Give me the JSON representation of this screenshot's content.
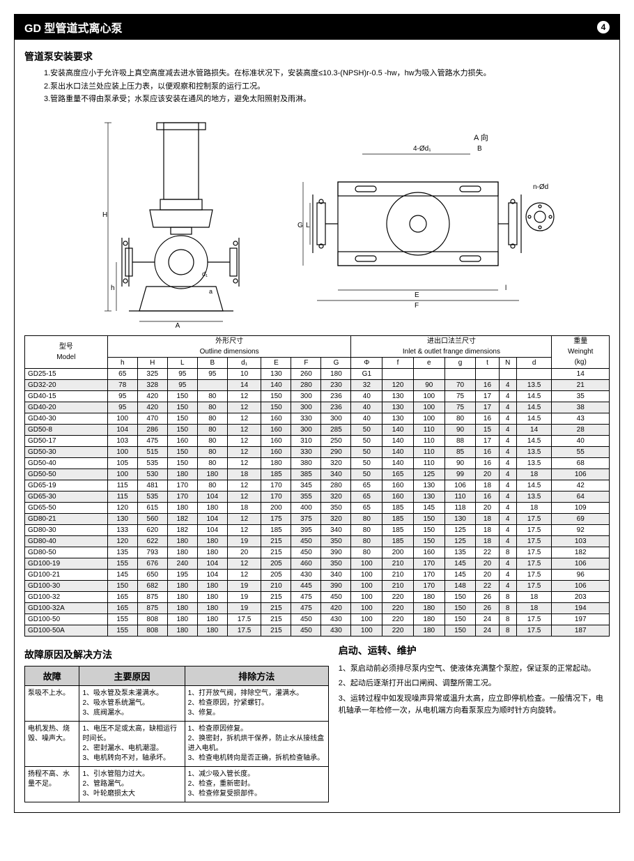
{
  "header": {
    "title": "GD 型管道式离心泵",
    "page": "4"
  },
  "installation": {
    "title": "管道泵安装要求",
    "lines": [
      "1.安装高度应小于允许吸上真空高度减去进水管路损失。在标准状况下，安装高度≤10.3-(NPSH)r-0.5 -hw，hw为吸入管路水力损失。",
      "2.泵出水口法兰处应装上压力表，以便观察和控制泵的运行工况。",
      "3.管路重量不得由泵承受；水泵应该安装在通风的地方，避免太阳照射及雨淋。"
    ]
  },
  "diagram_labels": {
    "center_bottom": "A",
    "ann1": "4-Ød₁",
    "ann2": "A 向",
    "ann3": "B",
    "ann4": "n-Ød",
    "H": "H",
    "h": "h",
    "L": "L",
    "B": "B",
    "d1": "d₁",
    "a": "a",
    "E": "E",
    "F": "F",
    "G": "G",
    "l": "l"
  },
  "spec_table": {
    "group_headers": [
      {
        "label": "型号\nModel",
        "colspan": 1,
        "rowspan": 2
      },
      {
        "label": "外形尺寸\nOutline dimensions",
        "colspan": 8
      },
      {
        "label": "进出口法兰尺寸\nInlet & outlet frange dimensions",
        "colspan": 7
      },
      {
        "label": "重量\nWeinght\n(kg)",
        "colspan": 1,
        "rowspan": 2
      }
    ],
    "sub_headers": [
      "h",
      "H",
      "L",
      "B",
      "d₁",
      "E",
      "F",
      "G",
      "Φ",
      "f",
      "e",
      "g",
      "t",
      "N",
      "d"
    ],
    "rows": [
      [
        "GD25-15",
        "65",
        "325",
        "95",
        "95",
        "10",
        "130",
        "260",
        "180",
        "G1",
        "",
        "",
        "",
        "",
        "",
        "",
        "14"
      ],
      [
        "GD32-20",
        "78",
        "328",
        "95",
        "",
        "14",
        "140",
        "280",
        "230",
        "32",
        "120",
        "90",
        "70",
        "16",
        "4",
        "13.5",
        "21"
      ],
      [
        "GD40-15",
        "95",
        "420",
        "150",
        "80",
        "12",
        "150",
        "300",
        "236",
        "40",
        "130",
        "100",
        "75",
        "17",
        "4",
        "14.5",
        "35"
      ],
      [
        "GD40-20",
        "95",
        "420",
        "150",
        "80",
        "12",
        "150",
        "300",
        "236",
        "40",
        "130",
        "100",
        "75",
        "17",
        "4",
        "14.5",
        "38"
      ],
      [
        "GD40-30",
        "100",
        "470",
        "150",
        "80",
        "12",
        "160",
        "330",
        "300",
        "40",
        "130",
        "100",
        "80",
        "16",
        "4",
        "14.5",
        "43"
      ],
      [
        "GD50-8",
        "104",
        "286",
        "150",
        "80",
        "12",
        "160",
        "300",
        "285",
        "50",
        "140",
        "110",
        "90",
        "15",
        "4",
        "14",
        "28"
      ],
      [
        "GD50-17",
        "103",
        "475",
        "160",
        "80",
        "12",
        "160",
        "310",
        "250",
        "50",
        "140",
        "110",
        "88",
        "17",
        "4",
        "14.5",
        "40"
      ],
      [
        "GD50-30",
        "100",
        "515",
        "150",
        "80",
        "12",
        "160",
        "330",
        "290",
        "50",
        "140",
        "110",
        "85",
        "16",
        "4",
        "13.5",
        "55"
      ],
      [
        "GD50-40",
        "105",
        "535",
        "150",
        "80",
        "12",
        "180",
        "380",
        "320",
        "50",
        "140",
        "110",
        "90",
        "16",
        "4",
        "13.5",
        "68"
      ],
      [
        "GD50-50",
        "100",
        "530",
        "180",
        "180",
        "18",
        "185",
        "385",
        "340",
        "50",
        "165",
        "125",
        "99",
        "20",
        "4",
        "18",
        "106"
      ],
      [
        "GD65-19",
        "115",
        "481",
        "170",
        "80",
        "12",
        "170",
        "345",
        "280",
        "65",
        "160",
        "130",
        "106",
        "18",
        "4",
        "14.5",
        "42"
      ],
      [
        "GD65-30",
        "115",
        "535",
        "170",
        "104",
        "12",
        "170",
        "355",
        "320",
        "65",
        "160",
        "130",
        "110",
        "16",
        "4",
        "13.5",
        "64"
      ],
      [
        "GD65-50",
        "120",
        "615",
        "180",
        "180",
        "18",
        "200",
        "400",
        "350",
        "65",
        "185",
        "145",
        "118",
        "20",
        "4",
        "18",
        "109"
      ],
      [
        "GD80-21",
        "130",
        "560",
        "182",
        "104",
        "12",
        "175",
        "375",
        "320",
        "80",
        "185",
        "150",
        "130",
        "18",
        "4",
        "17.5",
        "69"
      ],
      [
        "GD80-30",
        "133",
        "620",
        "182",
        "104",
        "12",
        "185",
        "395",
        "340",
        "80",
        "185",
        "150",
        "125",
        "18",
        "4",
        "17.5",
        "92"
      ],
      [
        "GD80-40",
        "120",
        "622",
        "180",
        "180",
        "19",
        "215",
        "450",
        "350",
        "80",
        "185",
        "150",
        "125",
        "18",
        "4",
        "17.5",
        "103"
      ],
      [
        "GD80-50",
        "135",
        "793",
        "180",
        "180",
        "20",
        "215",
        "450",
        "390",
        "80",
        "200",
        "160",
        "135",
        "22",
        "8",
        "17.5",
        "182"
      ],
      [
        "GD100-19",
        "155",
        "676",
        "240",
        "104",
        "12",
        "205",
        "460",
        "350",
        "100",
        "210",
        "170",
        "145",
        "20",
        "4",
        "17.5",
        "106"
      ],
      [
        "GD100-21",
        "145",
        "650",
        "195",
        "104",
        "12",
        "205",
        "430",
        "340",
        "100",
        "210",
        "170",
        "145",
        "20",
        "4",
        "17.5",
        "96"
      ],
      [
        "GD100-30",
        "150",
        "682",
        "180",
        "180",
        "19",
        "210",
        "445",
        "390",
        "100",
        "210",
        "170",
        "148",
        "22",
        "4",
        "17.5",
        "106"
      ],
      [
        "GD100-32",
        "165",
        "875",
        "180",
        "180",
        "19",
        "215",
        "475",
        "450",
        "100",
        "220",
        "180",
        "150",
        "26",
        "8",
        "18",
        "203"
      ],
      [
        "GD100-32A",
        "165",
        "875",
        "180",
        "180",
        "19",
        "215",
        "475",
        "420",
        "100",
        "220",
        "180",
        "150",
        "26",
        "8",
        "18",
        "194"
      ],
      [
        "GD100-50",
        "155",
        "808",
        "180",
        "180",
        "17.5",
        "215",
        "450",
        "430",
        "100",
        "220",
        "180",
        "150",
        "24",
        "8",
        "17.5",
        "197"
      ],
      [
        "GD100-50A",
        "155",
        "808",
        "180",
        "180",
        "17.5",
        "215",
        "450",
        "430",
        "100",
        "220",
        "180",
        "150",
        "24",
        "8",
        "17.5",
        "187"
      ]
    ],
    "zebra_start": 1,
    "colors": {
      "border": "#000000",
      "zebra": "#ececec"
    }
  },
  "fault": {
    "title": "故障原因及解决方法",
    "headers": [
      "故障",
      "主要原因",
      "排除方法"
    ],
    "rows": [
      {
        "f": "泵吸不上水。",
        "r": "1、吸水管及泵未灌满水。\n2、吸水管系统漏气。\n3、底阀漏水。",
        "s": "1、打开放气阀，排除空气，灌满水。\n2、检查原因，拧紧螺钉。\n3、修复。"
      },
      {
        "f": "电机发热、烧毁、噪声大。",
        "r": "1、电压不足或太高，缺相运行时间长。\n2、密封漏水、电机潮湿。\n3、电机转向不对，轴承坏。",
        "s": "1、检查原因修复。\n2、换密封，拆机烘干保养，防止水从接线盒进入电机。\n3、检查电机转向是否正确，拆机检查轴承。"
      },
      {
        "f": "扬程不高、水量不足。",
        "r": "1、引水管阻力过大。\n2、管路漏气。\n3、叶轮磨损太大",
        "s": "1、减少吸入管长度。\n2、检查，重新密封。\n3、检查修复受损部件。"
      }
    ]
  },
  "operation": {
    "title": "启动、运转、维护",
    "paras": [
      "1、泵启动前必须排尽泵内空气、使液体充满整个泵腔，保证泵的正常起动。",
      "2、起动后逐渐打开出口闸阀、调整所需工况。",
      "3、运转过程中如发现噪声异常或温升太高，应立即停机检查。一般情况下，电机轴承一年检修一次，从电机端方向看泵泵应为顺时针方向旋转。"
    ]
  }
}
